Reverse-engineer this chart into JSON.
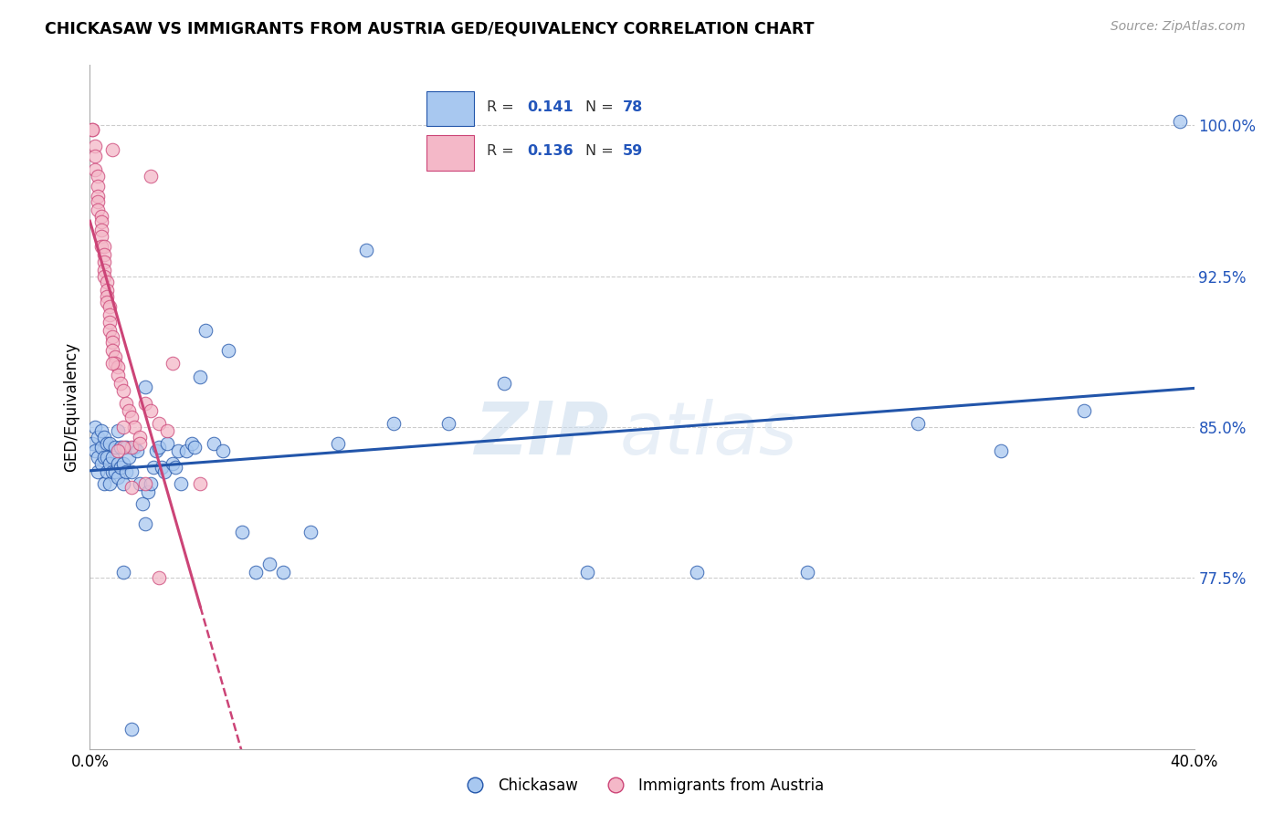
{
  "title": "CHICKASAW VS IMMIGRANTS FROM AUSTRIA GED/EQUIVALENCY CORRELATION CHART",
  "source": "Source: ZipAtlas.com",
  "ylabel": "GED/Equivalency",
  "yticks": [
    "77.5%",
    "85.0%",
    "92.5%",
    "100.0%"
  ],
  "ytick_vals": [
    0.775,
    0.85,
    0.925,
    1.0
  ],
  "xlim": [
    0.0,
    0.4
  ],
  "ylim": [
    0.69,
    1.03
  ],
  "legend_r1": "R = 0.141",
  "legend_n1": "N = 78",
  "legend_r2": "R = 0.136",
  "legend_n2": "N = 59",
  "color_blue": "#A8C8F0",
  "color_pink": "#F4B8C8",
  "line_blue": "#2255AA",
  "line_pink": "#CC4477",
  "watermark_zip": "ZIP",
  "watermark_atlas": "atlas",
  "chickasaw_x": [
    0.001,
    0.002,
    0.002,
    0.003,
    0.003,
    0.003,
    0.004,
    0.004,
    0.004,
    0.005,
    0.005,
    0.005,
    0.006,
    0.006,
    0.006,
    0.007,
    0.007,
    0.007,
    0.008,
    0.008,
    0.009,
    0.009,
    0.01,
    0.01,
    0.01,
    0.011,
    0.011,
    0.012,
    0.012,
    0.013,
    0.013,
    0.014,
    0.015,
    0.016,
    0.017,
    0.018,
    0.019,
    0.02,
    0.021,
    0.022,
    0.023,
    0.024,
    0.025,
    0.026,
    0.027,
    0.028,
    0.03,
    0.031,
    0.032,
    0.033,
    0.035,
    0.037,
    0.038,
    0.04,
    0.042,
    0.045,
    0.048,
    0.05,
    0.055,
    0.06,
    0.065,
    0.07,
    0.08,
    0.09,
    0.1,
    0.11,
    0.13,
    0.15,
    0.18,
    0.22,
    0.26,
    0.3,
    0.33,
    0.36,
    0.395,
    0.012,
    0.015,
    0.02
  ],
  "chickasaw_y": [
    0.842,
    0.838,
    0.85,
    0.835,
    0.828,
    0.845,
    0.84,
    0.832,
    0.848,
    0.835,
    0.822,
    0.845,
    0.828,
    0.842,
    0.835,
    0.832,
    0.822,
    0.842,
    0.835,
    0.828,
    0.84,
    0.828,
    0.832,
    0.825,
    0.848,
    0.83,
    0.84,
    0.822,
    0.832,
    0.828,
    0.84,
    0.835,
    0.828,
    0.84,
    0.838,
    0.822,
    0.812,
    0.802,
    0.818,
    0.822,
    0.83,
    0.838,
    0.84,
    0.83,
    0.828,
    0.842,
    0.832,
    0.83,
    0.838,
    0.822,
    0.838,
    0.842,
    0.84,
    0.875,
    0.898,
    0.842,
    0.838,
    0.888,
    0.798,
    0.778,
    0.782,
    0.778,
    0.798,
    0.842,
    0.938,
    0.852,
    0.852,
    0.872,
    0.778,
    0.778,
    0.778,
    0.852,
    0.838,
    0.858,
    1.002,
    0.778,
    0.7,
    0.87
  ],
  "austria_x": [
    0.001,
    0.001,
    0.002,
    0.002,
    0.002,
    0.003,
    0.003,
    0.003,
    0.003,
    0.003,
    0.004,
    0.004,
    0.004,
    0.004,
    0.004,
    0.005,
    0.005,
    0.005,
    0.005,
    0.005,
    0.006,
    0.006,
    0.006,
    0.006,
    0.007,
    0.007,
    0.007,
    0.007,
    0.008,
    0.008,
    0.008,
    0.009,
    0.009,
    0.01,
    0.01,
    0.011,
    0.012,
    0.013,
    0.014,
    0.015,
    0.016,
    0.018,
    0.02,
    0.022,
    0.025,
    0.028,
    0.03,
    0.015,
    0.012,
    0.018,
    0.022,
    0.008,
    0.01,
    0.015,
    0.02,
    0.025,
    0.008,
    0.012,
    0.04
  ],
  "austria_y": [
    0.998,
    0.998,
    0.99,
    0.985,
    0.978,
    0.975,
    0.97,
    0.965,
    0.962,
    0.958,
    0.955,
    0.952,
    0.948,
    0.945,
    0.94,
    0.94,
    0.936,
    0.932,
    0.928,
    0.925,
    0.922,
    0.918,
    0.915,
    0.912,
    0.91,
    0.906,
    0.902,
    0.898,
    0.895,
    0.892,
    0.888,
    0.885,
    0.882,
    0.88,
    0.876,
    0.872,
    0.868,
    0.862,
    0.858,
    0.855,
    0.85,
    0.845,
    0.862,
    0.858,
    0.852,
    0.848,
    0.882,
    0.84,
    0.84,
    0.842,
    0.975,
    0.882,
    0.838,
    0.82,
    0.822,
    0.775,
    0.988,
    0.85,
    0.822
  ]
}
